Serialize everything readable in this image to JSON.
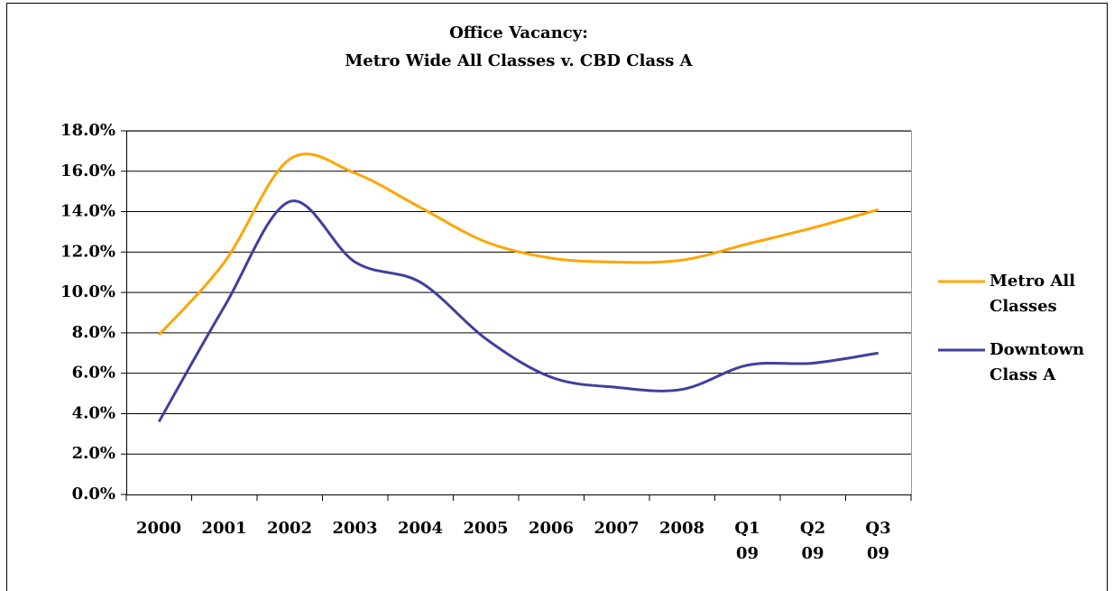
{
  "chart_data": {
    "type": "line",
    "title": "Office Vacancy:",
    "subtitle": "Metro Wide All Classes v. CBD Class A",
    "categories": [
      "2000",
      "2001",
      "2002",
      "2003",
      "2004",
      "2005",
      "2006",
      "2007",
      "2008",
      "Q1 09",
      "Q2 09",
      "Q3 09"
    ],
    "series": [
      {
        "name": "Metro All Classes",
        "color": "#ffa500",
        "values": [
          7.9,
          11.5,
          16.6,
          15.9,
          14.2,
          12.5,
          11.7,
          11.5,
          11.6,
          12.4,
          13.2,
          14.1
        ]
      },
      {
        "name": "Downtown Class A",
        "color": "#3f3f9f",
        "values": [
          3.6,
          9.3,
          14.5,
          11.5,
          10.5,
          7.7,
          5.8,
          5.3,
          5.2,
          6.4,
          6.5,
          7.0
        ]
      }
    ],
    "ylim": [
      0,
      18
    ],
    "yticks": [
      {
        "value": 0,
        "label": "0.0%"
      },
      {
        "value": 2,
        "label": "2.0%"
      },
      {
        "value": 4,
        "label": "4.0%"
      },
      {
        "value": 6,
        "label": "6.0%"
      },
      {
        "value": 8,
        "label": "8.0%"
      },
      {
        "value": 10,
        "label": "10.0%"
      },
      {
        "value": 12,
        "label": "12.0%"
      },
      {
        "value": 14,
        "label": "14.0%"
      },
      {
        "value": 16,
        "label": "16.0%"
      },
      {
        "value": 18,
        "label": "18.0%"
      }
    ],
    "grid": true,
    "legend": "right"
  }
}
